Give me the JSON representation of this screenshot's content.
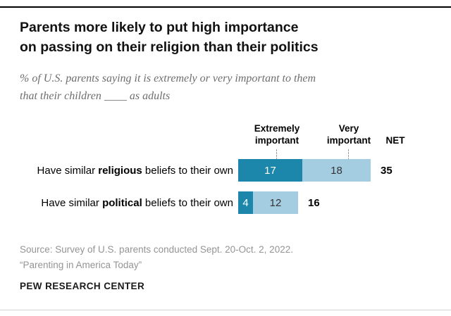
{
  "header": {
    "title_lines": [
      "Parents more likely to put high importance",
      "on passing on their religion than their politics"
    ],
    "subtitle_lines": [
      "% of U.S. parents saying it is extremely or very important to them",
      "that their children ____ as adults"
    ]
  },
  "chart_data": {
    "type": "bar",
    "orientation": "horizontal",
    "stacked": true,
    "categories": [
      "Have similar religious beliefs to their own",
      "Have similar political beliefs to their own"
    ],
    "category_parts": [
      {
        "prefix": "Have similar ",
        "bold": "religious",
        "suffix": " beliefs to their own"
      },
      {
        "prefix": "Have similar ",
        "bold": "political",
        "suffix": " beliefs to their own"
      }
    ],
    "series": [
      {
        "name": "Extremely important",
        "color": "#1d87ab",
        "label_color": "#ffffff",
        "values": [
          17,
          4
        ]
      },
      {
        "name": "Very important",
        "color": "#a5cde2",
        "label_color": "#333333",
        "values": [
          18,
          12
        ]
      }
    ],
    "net": {
      "label": "NET",
      "values": [
        35,
        16
      ]
    },
    "xlim": [
      0,
      35
    ],
    "value_labels": "inside",
    "legend_position": "column-headers",
    "grid": false
  },
  "footer": {
    "source_lines": [
      "Source: Survey of U.S. parents conducted Sept. 20-Oct. 2, 2022.",
      "“Parenting in America Today”"
    ],
    "brand": "PEW RESEARCH CENTER"
  }
}
